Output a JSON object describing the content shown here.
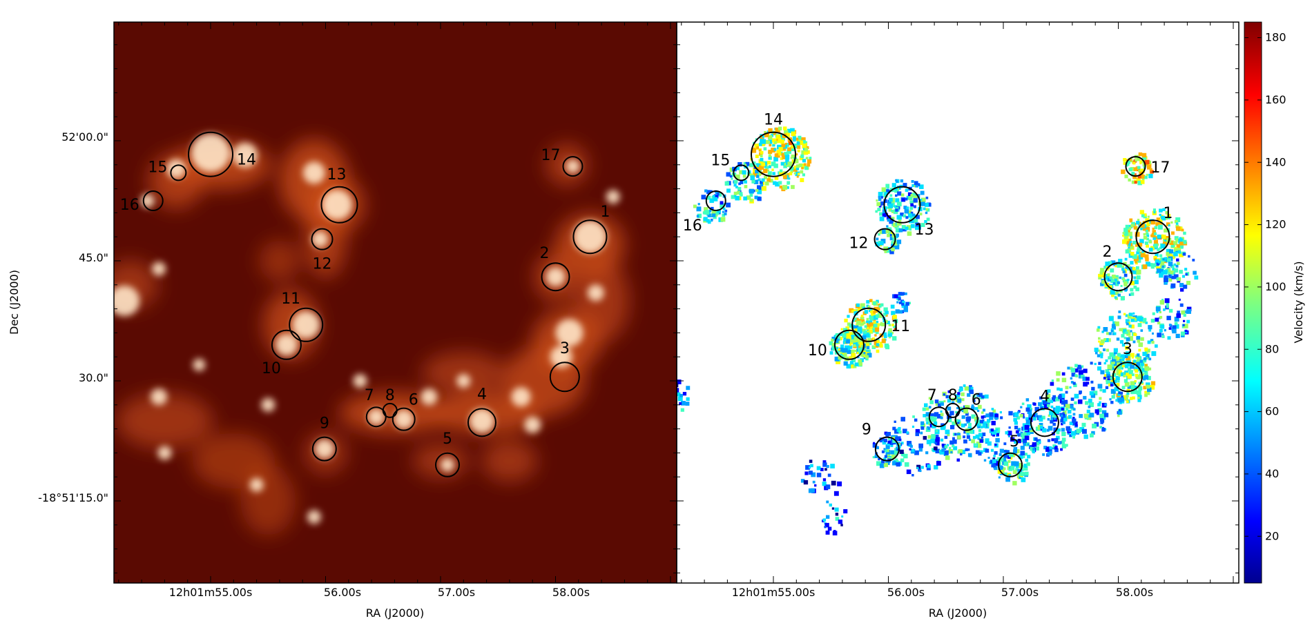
{
  "chart_data": [
    {
      "type": "image",
      "panel": "left",
      "description_colormap": "hot",
      "xlabel": "RA (J2000)",
      "ylabel": "Dec (J2000)",
      "x_tick_labels": [
        "12h01m55.00s",
        "56.00s",
        "57.00s",
        "58.00s"
      ],
      "y_tick_labels": [
        "52'00.0\"",
        "45.0\"",
        "30.0\"",
        "-18°51'15.0\""
      ],
      "regions": [
        {
          "id": "1",
          "ra_s": 58.3,
          "dec_s": 48.0
        },
        {
          "id": "2",
          "ra_s": 58.0,
          "dec_s": 43.0
        },
        {
          "id": "3",
          "ra_s": 58.08,
          "dec_s": 30.5
        },
        {
          "id": "4",
          "ra_s": 57.36,
          "dec_s": 24.8
        },
        {
          "id": "5",
          "ra_s": 57.06,
          "dec_s": 19.5
        },
        {
          "id": "6",
          "ra_s": 56.68,
          "dec_s": 25.2
        },
        {
          "id": "7",
          "ra_s": 56.44,
          "dec_s": 25.5
        },
        {
          "id": "8",
          "ra_s": 56.56,
          "dec_s": 26.3
        },
        {
          "id": "9",
          "ra_s": 55.99,
          "dec_s": 21.5
        },
        {
          "id": "10",
          "ra_s": 55.66,
          "dec_s": 34.5
        },
        {
          "id": "11",
          "ra_s": 55.83,
          "dec_s": 37.0
        },
        {
          "id": "12",
          "ra_s": 55.97,
          "dec_s": 47.7
        },
        {
          "id": "13",
          "ra_s": 56.12,
          "dec_s": 52.0
        },
        {
          "id": "14",
          "ra_s": 55.0,
          "dec_s": 58.3
        },
        {
          "id": "15",
          "ra_s": 54.72,
          "dec_s": 56.0
        },
        {
          "id": "16",
          "ra_s": 54.5,
          "dec_s": 52.5
        },
        {
          "id": "17",
          "ra_s": 58.15,
          "dec_s": 56.8
        }
      ]
    },
    {
      "type": "heatmap",
      "panel": "right",
      "xlabel": "RA (J2000)",
      "x_tick_labels": [
        "12h01m55.00s",
        "56.00s",
        "57.00s",
        "58.00s"
      ],
      "colorbar": {
        "label": "Velocity (km/s)",
        "ticks": [
          20,
          40,
          60,
          80,
          100,
          120,
          140,
          160,
          180
        ],
        "range": [
          5,
          185
        ],
        "colormap": "jet"
      },
      "regions_same_as_left": true
    }
  ],
  "colors": {
    "hot_dark": "#3a0000",
    "hot_mid": "#c83a0a",
    "hot_bright": "#ffd7a8",
    "circle": "#000000",
    "left_label": "#ffffff",
    "right_label": "#000000"
  }
}
